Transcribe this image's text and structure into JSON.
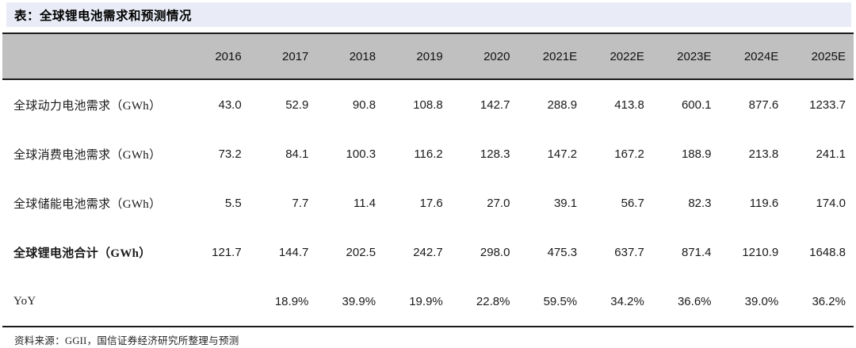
{
  "header": {
    "title": "表：全球锂电池需求和预测情况"
  },
  "footer": {
    "source": "资料来源：GGII，国信证券经济研究所整理与预测"
  },
  "colors": {
    "title_bar_bg": "#e9ecf6",
    "header_row_bg": "#c0c0c0",
    "rule": "#1a1a1a",
    "text": "#1a1a1a"
  },
  "chart_data": {
    "type": "table",
    "title": "表：全球锂电池需求和预测情况",
    "columns": [
      "2016",
      "2017",
      "2018",
      "2019",
      "2020",
      "2021E",
      "2022E",
      "2023E",
      "2024E",
      "2025E"
    ],
    "rows": [
      {
        "label": "全球动力电池需求（GWh）",
        "emphasis": false,
        "values": [
          "43.0",
          "52.9",
          "90.8",
          "108.8",
          "142.7",
          "288.9",
          "413.8",
          "600.1",
          "877.6",
          "1233.7"
        ]
      },
      {
        "label": "全球消费电池需求（GWh）",
        "emphasis": false,
        "values": [
          "73.2",
          "84.1",
          "100.3",
          "116.2",
          "128.3",
          "147.2",
          "167.2",
          "188.9",
          "213.8",
          "241.1"
        ]
      },
      {
        "label": "全球储能电池需求（GWh）",
        "emphasis": false,
        "values": [
          "5.5",
          "7.7",
          "11.4",
          "17.6",
          "27.0",
          "39.1",
          "56.7",
          "82.3",
          "119.6",
          "174.0"
        ]
      },
      {
        "label": "全球锂电池合计（GWh）",
        "emphasis": true,
        "values": [
          "121.7",
          "144.7",
          "202.5",
          "242.7",
          "298.0",
          "475.3",
          "637.7",
          "871.4",
          "1210.9",
          "1648.8"
        ]
      },
      {
        "label": "YoY",
        "emphasis": false,
        "values": [
          "",
          "18.9%",
          "39.9%",
          "19.9%",
          "22.8%",
          "59.5%",
          "34.2%",
          "36.6%",
          "39.0%",
          "36.2%"
        ]
      }
    ]
  }
}
